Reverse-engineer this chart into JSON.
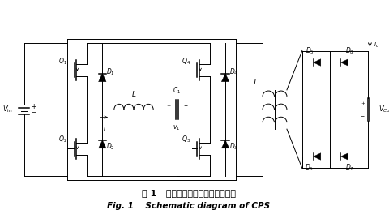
{
  "bg_color": "#ffffff",
  "title_cn": "图 1   电容器充电源电主电路结构图",
  "title_en": "Fig. 1    Schematic diagram of CPS",
  "fig_width": 4.81,
  "fig_height": 2.7,
  "dpi": 100
}
